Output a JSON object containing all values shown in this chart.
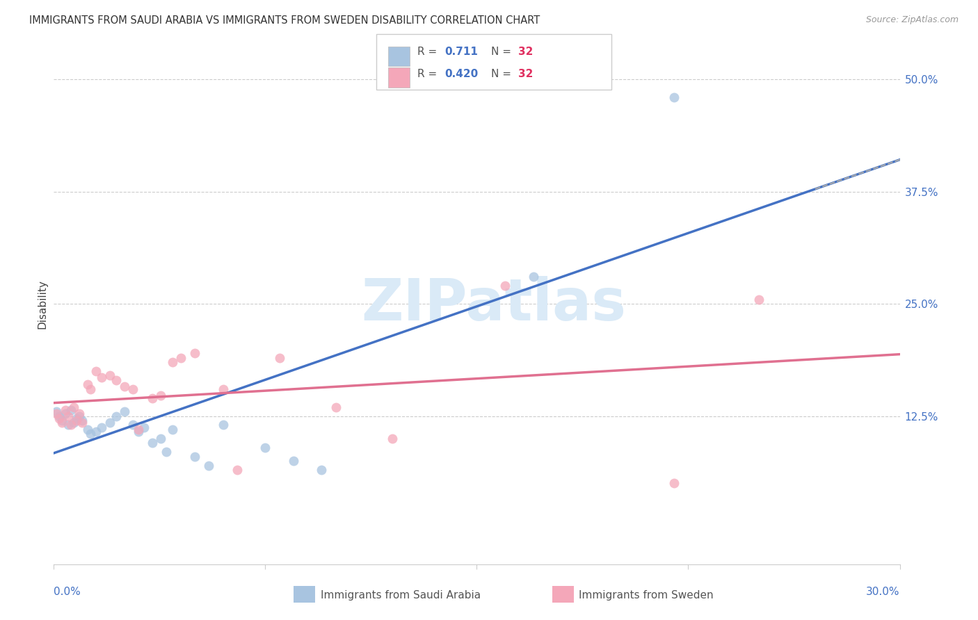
{
  "title": "IMMIGRANTS FROM SAUDI ARABIA VS IMMIGRANTS FROM SWEDEN DISABILITY CORRELATION CHART",
  "source": "Source: ZipAtlas.com",
  "ylabel": "Disability",
  "xlim": [
    0.0,
    0.3
  ],
  "ylim": [
    -0.04,
    0.54
  ],
  "yticks": [
    0.125,
    0.25,
    0.375,
    0.5
  ],
  "ytick_labels": [
    "12.5%",
    "25.0%",
    "37.5%",
    "50.0%"
  ],
  "grid_color": "#cccccc",
  "background_color": "#ffffff",
  "saudi_color": "#a8c4e0",
  "sweden_color": "#f4a7b9",
  "saudi_line_color": "#4472c4",
  "sweden_line_color": "#e07090",
  "tick_label_color": "#4472c4",
  "watermark_text": "ZIPatlas",
  "watermark_color": "#daeaf7",
  "saudi_x": [
    0.001,
    0.002,
    0.003,
    0.004,
    0.005,
    0.006,
    0.007,
    0.008,
    0.009,
    0.01,
    0.012,
    0.013,
    0.015,
    0.017,
    0.02,
    0.022,
    0.025,
    0.028,
    0.03,
    0.032,
    0.035,
    0.038,
    0.04,
    0.042,
    0.05,
    0.055,
    0.06,
    0.075,
    0.085,
    0.095,
    0.17,
    0.22
  ],
  "saudi_y": [
    0.13,
    0.125,
    0.12,
    0.128,
    0.115,
    0.132,
    0.118,
    0.122,
    0.125,
    0.12,
    0.11,
    0.105,
    0.108,
    0.112,
    0.118,
    0.125,
    0.13,
    0.115,
    0.108,
    0.112,
    0.095,
    0.1,
    0.085,
    0.11,
    0.08,
    0.07,
    0.115,
    0.09,
    0.075,
    0.065,
    0.28,
    0.48
  ],
  "sweden_x": [
    0.001,
    0.002,
    0.003,
    0.004,
    0.005,
    0.006,
    0.007,
    0.008,
    0.009,
    0.01,
    0.012,
    0.013,
    0.015,
    0.017,
    0.02,
    0.022,
    0.025,
    0.028,
    0.03,
    0.035,
    0.038,
    0.042,
    0.045,
    0.05,
    0.06,
    0.065,
    0.08,
    0.1,
    0.12,
    0.16,
    0.22,
    0.25
  ],
  "sweden_y": [
    0.128,
    0.122,
    0.118,
    0.132,
    0.125,
    0.115,
    0.135,
    0.12,
    0.128,
    0.118,
    0.16,
    0.155,
    0.175,
    0.168,
    0.17,
    0.165,
    0.158,
    0.155,
    0.11,
    0.145,
    0.148,
    0.185,
    0.19,
    0.195,
    0.155,
    0.065,
    0.19,
    0.135,
    0.1,
    0.27,
    0.05,
    0.255
  ],
  "legend_R_saudi": "0.711",
  "legend_N_saudi": "32",
  "legend_R_sweden": "0.420",
  "legend_N_sweden": "32"
}
